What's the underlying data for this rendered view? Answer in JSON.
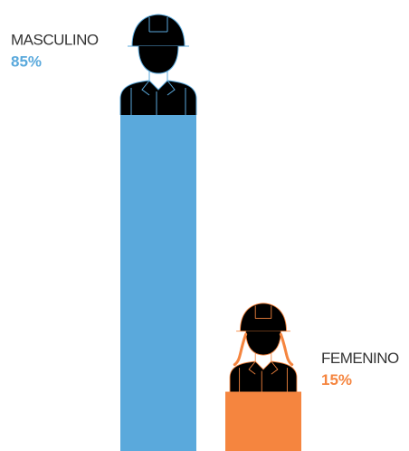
{
  "chart_data": {
    "type": "bar",
    "categories": [
      "MASCULINO",
      "FEMENINO"
    ],
    "values": [
      85,
      15
    ],
    "value_labels": [
      "85%",
      "15%"
    ],
    "colors": [
      "#5aa9dc",
      "#f5853f"
    ]
  }
}
